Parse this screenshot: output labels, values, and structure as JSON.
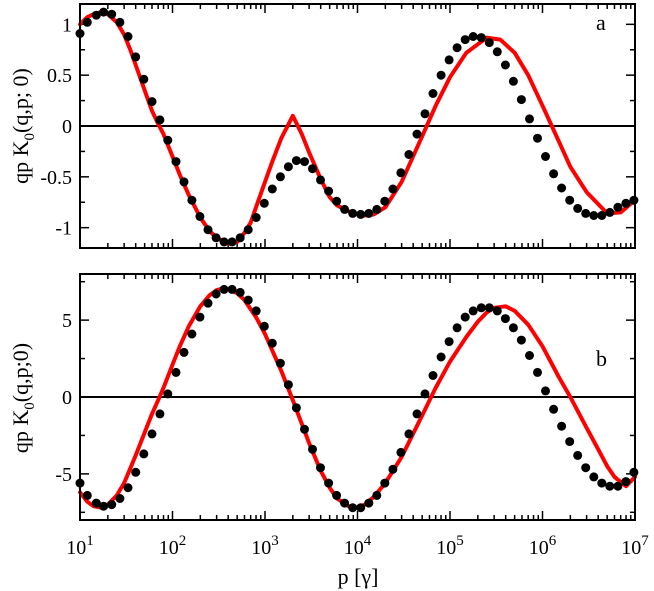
{
  "chart_data": [
    {
      "type": "line",
      "panel_label": "a",
      "ylabel": "qp K",
      "ylabel_sub": "0",
      "ylabel_rest": "(q,p; 0)",
      "xlabel": "",
      "xscale": "log",
      "xlim": [
        10,
        10000000
      ],
      "ylim": [
        -1.2,
        1.2
      ],
      "yticks": [
        1,
        0.5,
        0,
        -0.5,
        -1
      ],
      "ytick_labels": [
        "1",
        "0.5",
        "0",
        "-0.5",
        "-1"
      ],
      "zero_line": true,
      "series": [
        {
          "style": "line",
          "color": "#ff0000",
          "x": [
            10,
            12,
            14,
            17,
            20,
            25,
            30,
            35,
            40,
            50,
            60,
            70,
            80,
            100,
            120,
            150,
            200,
            250,
            300,
            400,
            500,
            600,
            700,
            800,
            1000,
            1200,
            1500,
            2000,
            2500,
            3000,
            4000,
            5000,
            6000,
            8000,
            10000,
            12000,
            15000,
            20000,
            30000,
            50000,
            70000,
            100000,
            150000,
            250000,
            350000,
            500000,
            700000,
            1000000,
            1500000,
            2000000,
            3000000,
            5000000,
            7000000,
            10000000
          ],
          "y": [
            1.0,
            1.07,
            1.1,
            1.12,
            1.1,
            1.02,
            0.9,
            0.75,
            0.6,
            0.35,
            0.15,
            0.02,
            -0.08,
            -0.3,
            -0.48,
            -0.68,
            -0.9,
            -1.03,
            -1.1,
            -1.16,
            -1.14,
            -1.05,
            -0.95,
            -0.8,
            -0.55,
            -0.35,
            -0.12,
            0.1,
            -0.08,
            -0.26,
            -0.52,
            -0.7,
            -0.78,
            -0.84,
            -0.87,
            -0.88,
            -0.87,
            -0.8,
            -0.55,
            -0.1,
            0.2,
            0.48,
            0.72,
            0.87,
            0.85,
            0.72,
            0.5,
            0.2,
            -0.15,
            -0.4,
            -0.65,
            -0.86,
            -0.85,
            -0.73
          ]
        },
        {
          "style": "points",
          "color": "#000000",
          "x": [
            10,
            12,
            15,
            18,
            22,
            27,
            33,
            40,
            49,
            60,
            73,
            89,
            109,
            133,
            162,
            198,
            242,
            296,
            361,
            441,
            539,
            658,
            804,
            982,
            1200,
            1466,
            1790,
            2187,
            2671,
            3262,
            3985,
            4867,
            5945,
            7262,
            8870,
            10834,
            13233,
            16164,
            19743,
            24115,
            29455,
            35978,
            43945,
            53676,
            65563,
            80081,
            97815,
            119476,
            145933,
            178250,
            217721,
            265935,
            324824,
            396755,
            484615,
            591931,
            723012,
            883120,
            1078683,
            1317552,
            1609317,
            1965693,
            2400986,
            2932675,
            3582099,
            4375333,
            5344219,
            6527661,
            7973173,
            9738797
          ],
          "y": [
            0.91,
            1.02,
            1.09,
            1.12,
            1.1,
            1.02,
            0.88,
            0.68,
            0.46,
            0.24,
            0.06,
            -0.14,
            -0.35,
            -0.55,
            -0.73,
            -0.89,
            -1.02,
            -1.1,
            -1.14,
            -1.14,
            -1.1,
            -1.02,
            -0.9,
            -0.76,
            -0.62,
            -0.5,
            -0.4,
            -0.34,
            -0.35,
            -0.42,
            -0.53,
            -0.64,
            -0.74,
            -0.82,
            -0.86,
            -0.87,
            -0.86,
            -0.82,
            -0.74,
            -0.62,
            -0.46,
            -0.28,
            -0.08,
            0.12,
            0.32,
            0.5,
            0.65,
            0.77,
            0.85,
            0.88,
            0.87,
            0.82,
            0.73,
            0.6,
            0.44,
            0.26,
            0.07,
            -0.12,
            -0.3,
            -0.47,
            -0.61,
            -0.73,
            -0.81,
            -0.86,
            -0.88,
            -0.88,
            -0.85,
            -0.8,
            -0.76,
            -0.73
          ]
        }
      ]
    },
    {
      "type": "line",
      "panel_label": "b",
      "ylabel": "qp K",
      "ylabel_sub": "0",
      "ylabel_rest": "(q,p;0)",
      "xlabel": "p [γ]",
      "xscale": "log",
      "xlim": [
        10,
        10000000
      ],
      "xtick_bases": [
        "10",
        "10",
        "10",
        "10",
        "10",
        "10",
        "10"
      ],
      "xtick_exponents": [
        "1",
        "2",
        "3",
        "4",
        "5",
        "6",
        "7"
      ],
      "ylim": [
        -8,
        8
      ],
      "yticks": [
        5,
        0,
        -5
      ],
      "ytick_labels": [
        "5",
        "0",
        "-5"
      ],
      "zero_line": true,
      "series": [
        {
          "style": "line",
          "color": "#ff0000",
          "x": [
            10,
            12,
            14,
            17,
            20,
            25,
            30,
            40,
            50,
            60,
            70,
            80,
            100,
            120,
            150,
            200,
            250,
            300,
            350,
            400,
            500,
            600,
            800,
            1000,
            1500,
            2000,
            3000,
            4000,
            5000,
            6000,
            8000,
            10000,
            12000,
            15000,
            20000,
            30000,
            50000,
            70000,
            100000,
            150000,
            200000,
            250000,
            300000,
            400000,
            500000,
            700000,
            1000000,
            1500000,
            2000000,
            3000000,
            4000000,
            5000000,
            6000000,
            8000000,
            10000000
          ],
          "y": [
            -6.2,
            -6.8,
            -7.1,
            -7.2,
            -7.0,
            -6.4,
            -5.6,
            -3.8,
            -2.3,
            -1.1,
            -0.2,
            0.6,
            2.1,
            3.3,
            4.6,
            5.9,
            6.6,
            6.95,
            7.05,
            7.0,
            6.75,
            6.3,
            5.2,
            4.1,
            1.7,
            -0.2,
            -3.0,
            -4.8,
            -5.9,
            -6.6,
            -7.1,
            -7.2,
            -7.0,
            -6.5,
            -5.6,
            -3.9,
            -1.2,
            0.6,
            2.3,
            3.9,
            4.9,
            5.5,
            5.8,
            5.9,
            5.6,
            4.7,
            3.3,
            1.3,
            0.0,
            -2.0,
            -3.4,
            -4.5,
            -5.2,
            -5.8,
            -5.2
          ]
        },
        {
          "style": "points",
          "color": "#000000",
          "x": [
            10,
            12,
            15,
            18,
            22,
            27,
            33,
            40,
            49,
            60,
            73,
            89,
            109,
            133,
            162,
            198,
            242,
            296,
            361,
            441,
            539,
            658,
            804,
            982,
            1200,
            1466,
            1790,
            2187,
            2671,
            3262,
            3985,
            4867,
            5945,
            7262,
            8870,
            10834,
            13233,
            16164,
            19743,
            24115,
            29455,
            35978,
            43945,
            53676,
            65563,
            80081,
            97815,
            119476,
            145933,
            178250,
            217721,
            265935,
            324824,
            396755,
            484615,
            591931,
            723012,
            883120,
            1078683,
            1317552,
            1609317,
            1965693,
            2400986,
            2932675,
            3582099,
            4375333,
            5344219,
            6527661,
            7973173,
            9738797
          ],
          "y": [
            -5.6,
            -6.4,
            -6.9,
            -7.1,
            -7.0,
            -6.6,
            -5.9,
            -4.9,
            -3.7,
            -2.4,
            -1.1,
            0.2,
            1.6,
            2.9,
            4.1,
            5.2,
            6.1,
            6.7,
            7.0,
            7.0,
            6.8,
            6.3,
            5.6,
            4.6,
            3.5,
            2.2,
            0.8,
            -0.7,
            -2.1,
            -3.4,
            -4.6,
            -5.6,
            -6.4,
            -6.9,
            -7.2,
            -7.2,
            -6.9,
            -6.4,
            -5.6,
            -4.7,
            -3.6,
            -2.4,
            -1.1,
            0.2,
            1.4,
            2.6,
            3.6,
            4.5,
            5.2,
            5.6,
            5.8,
            5.8,
            5.6,
            5.1,
            4.5,
            3.7,
            2.7,
            1.6,
            0.4,
            -0.8,
            -1.9,
            -2.9,
            -3.8,
            -4.6,
            -5.2,
            -5.6,
            -5.8,
            -5.8,
            -5.5,
            -4.9
          ]
        }
      ]
    }
  ]
}
